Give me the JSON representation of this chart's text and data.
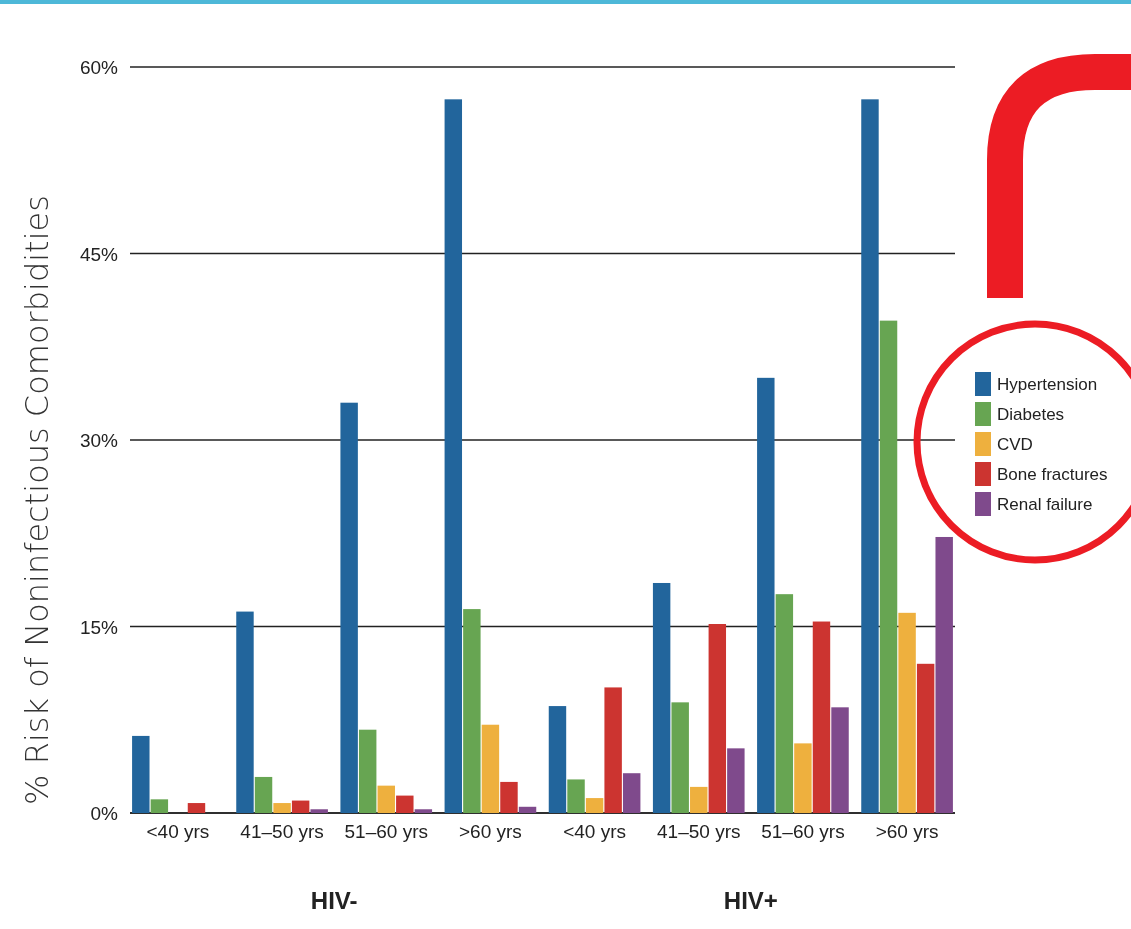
{
  "chart_data": {
    "type": "bar",
    "ylabel": "% Risk of Noninfectious Comorbidities",
    "categories": [
      "<40 yrs",
      "41–50 yrs",
      "51–60 yrs",
      ">60 yrs",
      "<40 yrs",
      "41–50 yrs",
      "51–60 yrs",
      ">60 yrs"
    ],
    "series": [
      {
        "name": "Hypertension",
        "color": "#22659c",
        "values": [
          6.2,
          16.2,
          33.0,
          57.4,
          8.6,
          18.5,
          35.0,
          57.4
        ]
      },
      {
        "name": "Diabetes",
        "color": "#67a552",
        "values": [
          1.1,
          2.9,
          6.7,
          16.4,
          2.7,
          8.9,
          17.6,
          39.6
        ]
      },
      {
        "name": "CVD",
        "color": "#eeb03e",
        "values": [
          0,
          0.8,
          2.2,
          7.1,
          1.2,
          2.1,
          5.6,
          16.1
        ]
      },
      {
        "name": "Bone fractures",
        "color": "#cc3430",
        "values": [
          0.8,
          1.0,
          1.4,
          2.5,
          10.1,
          15.2,
          15.4,
          12.0
        ]
      },
      {
        "name": "Renal failure",
        "color": "#7f4a8c",
        "values": [
          0,
          0.3,
          0.3,
          0.5,
          3.2,
          5.2,
          8.5,
          22.2
        ]
      }
    ],
    "ylim": [
      0,
      60
    ],
    "yticks": [
      {
        "value": 0,
        "label": "0%"
      },
      {
        "value": 15,
        "label": "15%"
      },
      {
        "value": 30,
        "label": "30%"
      },
      {
        "value": 45,
        "label": "45%"
      },
      {
        "value": 60,
        "label": "60%"
      }
    ],
    "grid": "y",
    "legend": "right",
    "annotations": [
      "HIV-",
      "HIV+"
    ]
  }
}
